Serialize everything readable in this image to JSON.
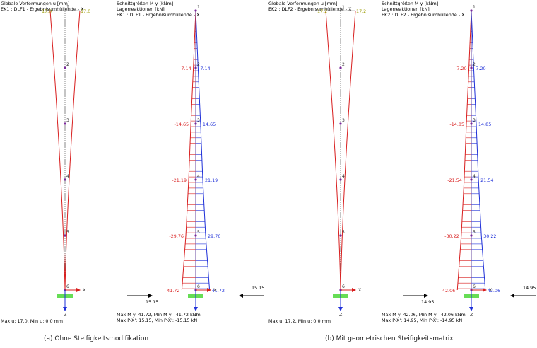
{
  "captions": {
    "a": "(a) Ohne Steifigkeitsmodifikation",
    "b": "(b) Mit geometrischen Steifigkeitsmatrix"
  },
  "axis_labels": {
    "x": "X",
    "z": "Z"
  },
  "node_labels": [
    "1",
    "2",
    "3",
    "4",
    "5",
    "6"
  ],
  "colors": {
    "negative": "#d81e1e",
    "positive": "#1e2fd8",
    "deformed": "#d81e1e",
    "undeformed": "#888888",
    "support": "#66dd55",
    "node": "#7a2a9a",
    "tip_label": "#9a9a00"
  },
  "panels": [
    {
      "deform": {
        "header": [
          "Globale Verformungen u [mm]",
          "EK1 : DLF1 - Ergebnisumhüllende - X"
        ],
        "tip_left": "17.0",
        "tip_right": "17.0",
        "footer": "Max u: 17.0, Min u: 0.0 mm"
      },
      "moment": {
        "header": [
          "Schnittgrößen M-y [kNm]",
          "Lagerreaktionen [kN]",
          "EK1 : DLF1 - Ergebnisumhüllende - X"
        ],
        "neg_labels": [
          "-7.14",
          "-14.65",
          "-21.19",
          "-29.76",
          "-41.72"
        ],
        "pos_labels": [
          "7.14",
          "14.65",
          "21.19",
          "29.76",
          "41.72"
        ],
        "neg_values": [
          7.14,
          14.65,
          21.19,
          29.76,
          41.72
        ],
        "pos_values": [
          7.14,
          14.65,
          21.19,
          29.76,
          41.72
        ],
        "reaction_left": "15.15",
        "reaction_right": "15.15",
        "footer": [
          "Max M-y: 41.72, Min M-y: -41.72 kNm",
          "Max P-X': 15.15, Min P-X': -15.15 kN"
        ]
      }
    },
    {
      "deform": {
        "header": [
          "Globale Verformungen u [mm]",
          "EK2 : DLF2 - Ergebnisumhüllende - X"
        ],
        "tip_left": "17.2",
        "tip_right": "17.2",
        "footer": "Max u: 17.2, Min u: 0.0 mm"
      },
      "moment": {
        "header": [
          "Schnittgrößen M-y [kNm]",
          "Lagerreaktionen [kN]",
          "EK2 : DLF2 - Ergebnisumhüllende - X"
        ],
        "neg_labels": [
          "-7.20",
          "-14.85",
          "-21.54",
          "-30.22",
          "-42.06"
        ],
        "pos_labels": [
          "7.20",
          "14.85",
          "21.54",
          "30.22",
          "42.06"
        ],
        "neg_values": [
          7.2,
          14.85,
          21.54,
          30.22,
          42.06
        ],
        "pos_values": [
          7.2,
          14.85,
          21.54,
          30.22,
          42.06
        ],
        "reaction_left": "14.95",
        "reaction_right": "14.95",
        "footer": [
          "Max M-y: 42.06, Min M-y: -42.06 kNm",
          "Max P-X': 14.95, Min P-X': -14.95 kN"
        ]
      }
    }
  ]
}
